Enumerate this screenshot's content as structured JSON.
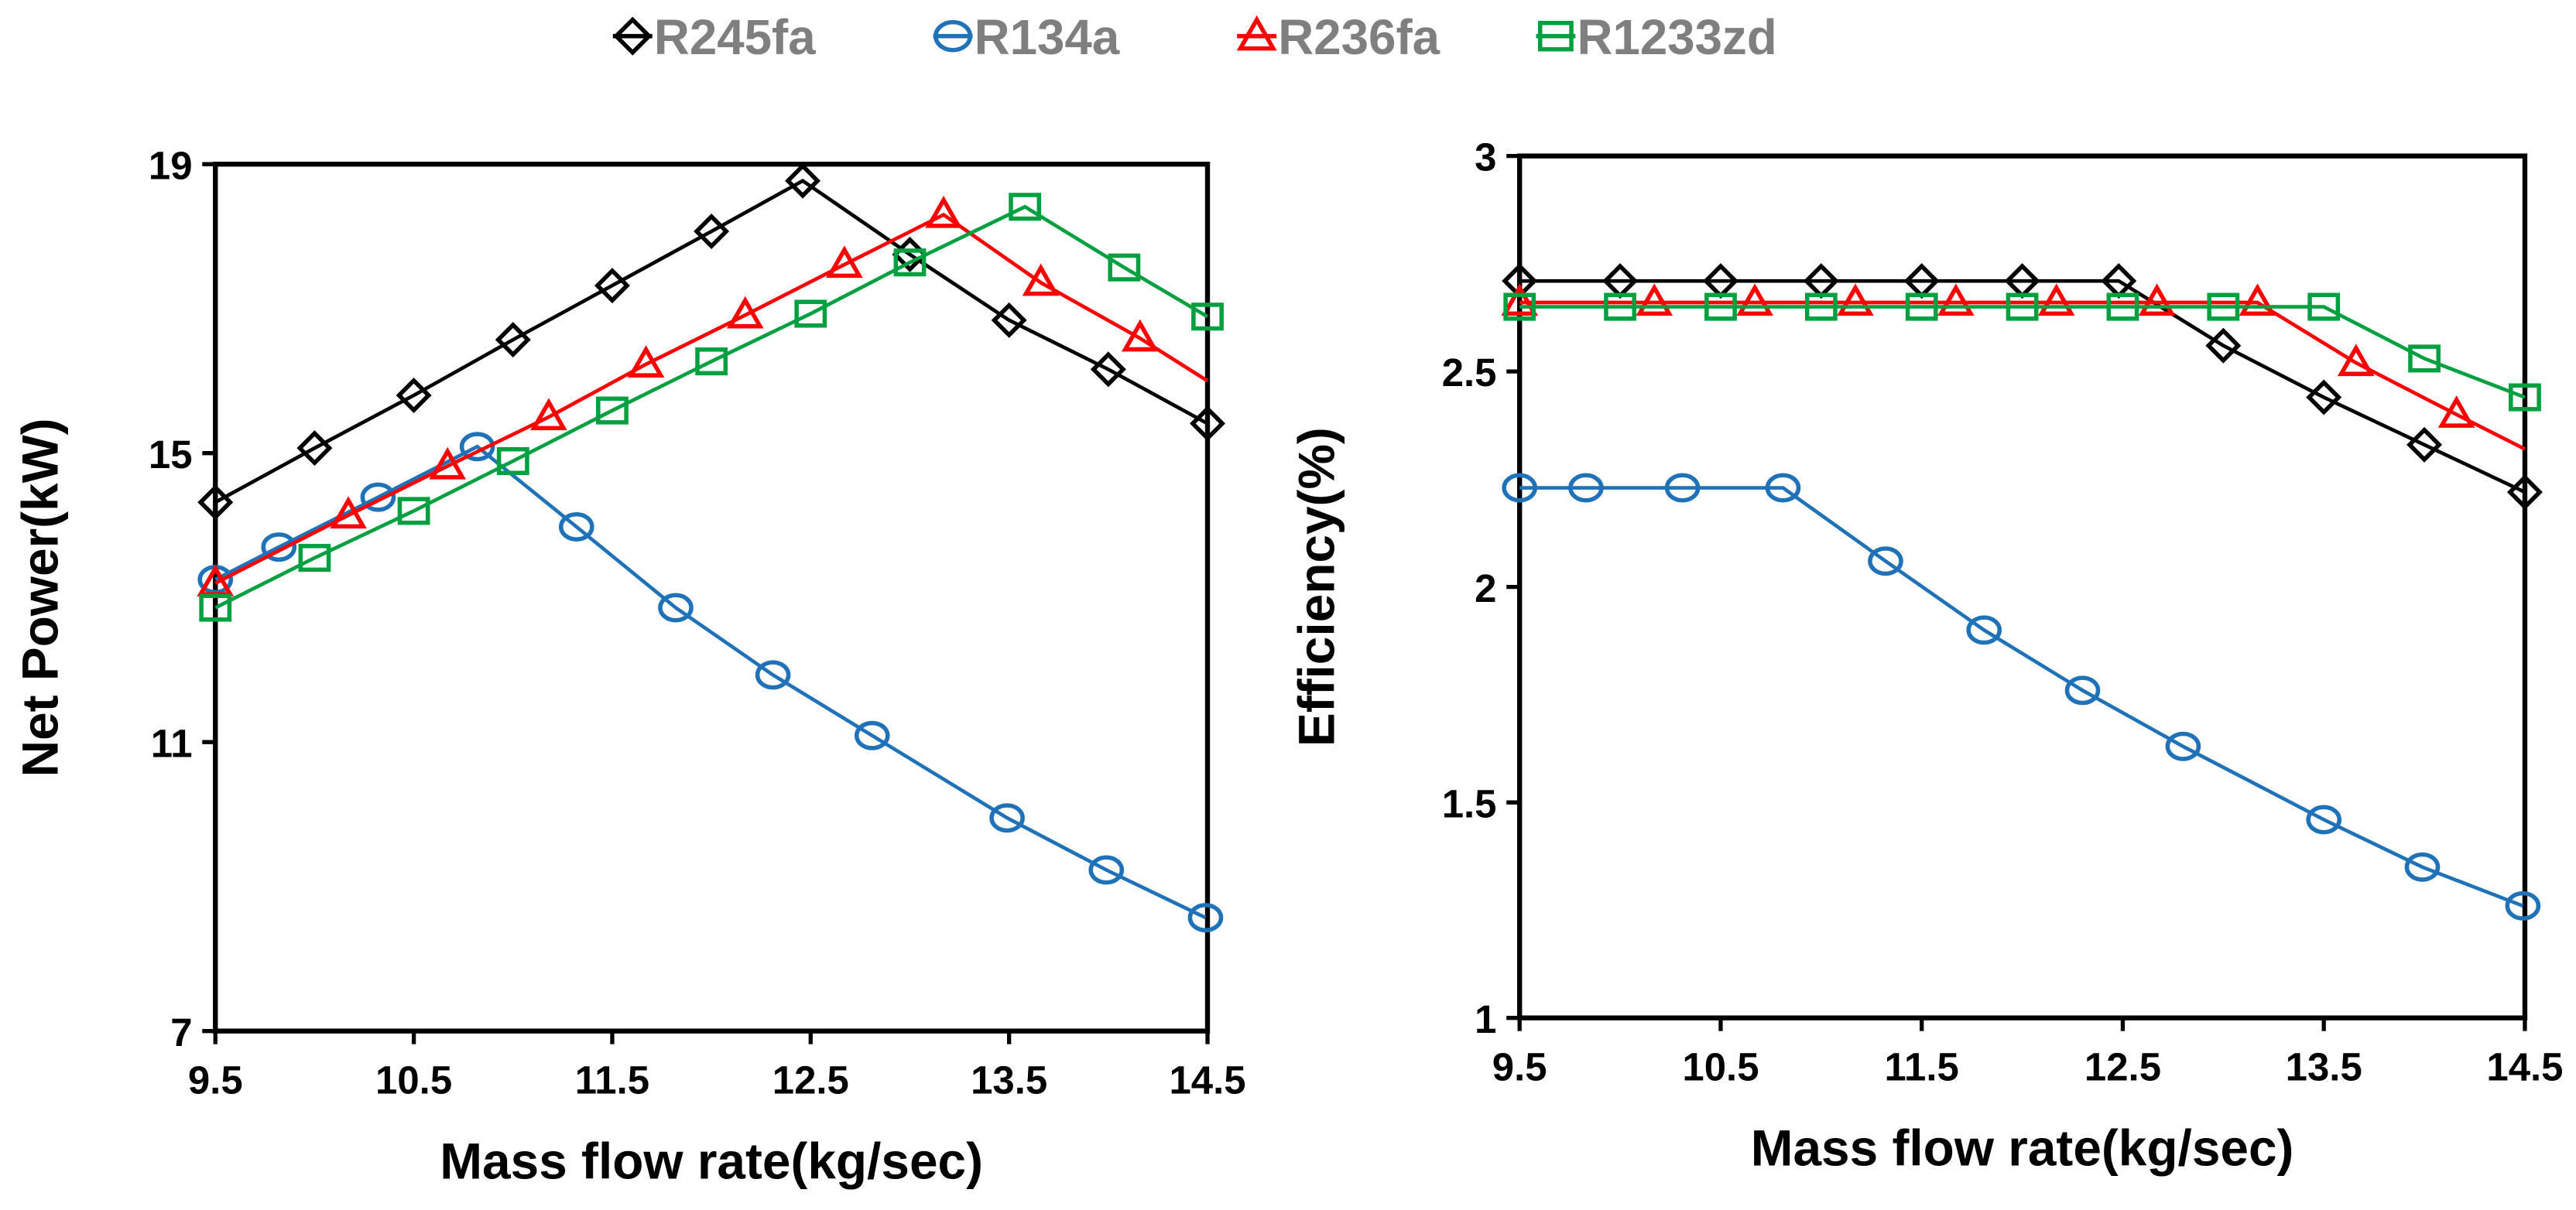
{
  "legend": [
    {
      "name": "R245fa",
      "color": "#000000",
      "marker": "diamond"
    },
    {
      "name": "R134a",
      "color": "#1f72b8",
      "marker": "circle"
    },
    {
      "name": "R236fa",
      "color": "#ff0000",
      "marker": "triangle"
    },
    {
      "name": "R1233zd",
      "color": "#00a040",
      "marker": "square"
    }
  ],
  "chart_data": [
    {
      "type": "line",
      "title": "",
      "xlabel": "Mass flow rate(kg/sec)",
      "ylabel": "Net Power(kW)",
      "xlim": [
        9.5,
        14.5
      ],
      "ylim": [
        7,
        19
      ],
      "xticks": [
        "9.5",
        "10.5",
        "11.5",
        "12.5",
        "13.5",
        "14.5"
      ],
      "yticks": [
        "7",
        "11",
        "15",
        "19"
      ],
      "xtick_values": [
        9.5,
        10.5,
        11.5,
        12.5,
        13.5,
        14.5
      ],
      "ytick_values": [
        7,
        11,
        15,
        19
      ],
      "grid": false,
      "legend_position": "top-center",
      "series": [
        {
          "name": "R245fa",
          "x": [
            9.5,
            10.0,
            10.5,
            11.0,
            11.5,
            12.0,
            12.46,
            13.0,
            13.5,
            14.0,
            14.5
          ],
          "y": [
            14.32,
            15.07,
            15.8,
            16.57,
            17.32,
            18.07,
            18.77,
            17.75,
            16.84,
            16.16,
            15.41
          ]
        },
        {
          "name": "R134a",
          "x": [
            9.5,
            9.82,
            10.32,
            10.82,
            11.32,
            11.82,
            12.31,
            12.81,
            13.49,
            13.99,
            14.49
          ],
          "y": [
            13.25,
            13.7,
            14.39,
            15.09,
            13.98,
            12.86,
            11.93,
            11.09,
            9.95,
            9.23,
            8.57
          ]
        },
        {
          "name": "R236fa",
          "x": [
            9.5,
            10.17,
            10.67,
            11.18,
            11.67,
            12.17,
            12.67,
            13.17,
            13.66,
            14.16
          ],
          "y": [
            13.2,
            14.14,
            14.82,
            15.5,
            16.23,
            16.91,
            17.61,
            18.3,
            17.36,
            16.59
          ],
          "line_end": [
            14.5,
            16.0
          ]
        },
        {
          "name": "R1233zd",
          "x": [
            9.5,
            10.0,
            10.5,
            11.0,
            11.5,
            12.0,
            12.5,
            13.0,
            13.58,
            14.08,
            14.5
          ],
          "y": [
            12.86,
            13.55,
            14.2,
            14.89,
            15.59,
            16.27,
            16.93,
            17.64,
            18.41,
            17.57,
            16.89
          ]
        }
      ]
    },
    {
      "type": "line",
      "title": "",
      "xlabel": "Mass flow rate(kg/sec)",
      "ylabel": "Efficiency(%)",
      "xlim": [
        9.5,
        14.5
      ],
      "ylim": [
        1,
        3
      ],
      "xticks": [
        "9.5",
        "10.5",
        "11.5",
        "12.5",
        "13.5",
        "14.5"
      ],
      "yticks": [
        "1",
        "1.5",
        "2",
        "2.5",
        "3"
      ],
      "xtick_values": [
        9.5,
        10.5,
        11.5,
        12.5,
        13.5,
        14.5
      ],
      "ytick_values": [
        1,
        1.5,
        2,
        2.5,
        3
      ],
      "grid": false,
      "series": [
        {
          "name": "R245fa",
          "x": [
            9.5,
            10.0,
            10.5,
            11.0,
            11.5,
            12.0,
            12.48,
            13.0,
            13.5,
            14.0,
            14.5
          ],
          "y": [
            2.71,
            2.71,
            2.71,
            2.71,
            2.71,
            2.71,
            2.71,
            2.56,
            2.44,
            2.33,
            2.22
          ]
        },
        {
          "name": "R134a",
          "x": [
            9.5,
            9.83,
            10.31,
            10.81,
            11.32,
            11.81,
            12.3,
            12.8,
            13.5,
            13.99,
            14.49
          ],
          "y": [
            2.23,
            2.23,
            2.23,
            2.23,
            2.06,
            1.9,
            1.76,
            1.63,
            1.46,
            1.35,
            1.26
          ]
        },
        {
          "name": "R236fa",
          "x": [
            9.5,
            10.17,
            10.67,
            11.17,
            11.67,
            12.17,
            12.67,
            13.17,
            13.66,
            14.16
          ],
          "y": [
            2.66,
            2.66,
            2.66,
            2.66,
            2.66,
            2.66,
            2.66,
            2.66,
            2.52,
            2.4
          ],
          "line_end": [
            14.5,
            2.32
          ]
        },
        {
          "name": "R1233zd",
          "x": [
            9.5,
            10.0,
            10.5,
            11.0,
            11.5,
            12.0,
            12.5,
            13.0,
            13.5,
            14.0,
            14.5
          ],
          "y": [
            2.65,
            2.65,
            2.65,
            2.65,
            2.65,
            2.65,
            2.65,
            2.65,
            2.65,
            2.53,
            2.44
          ]
        }
      ]
    }
  ]
}
